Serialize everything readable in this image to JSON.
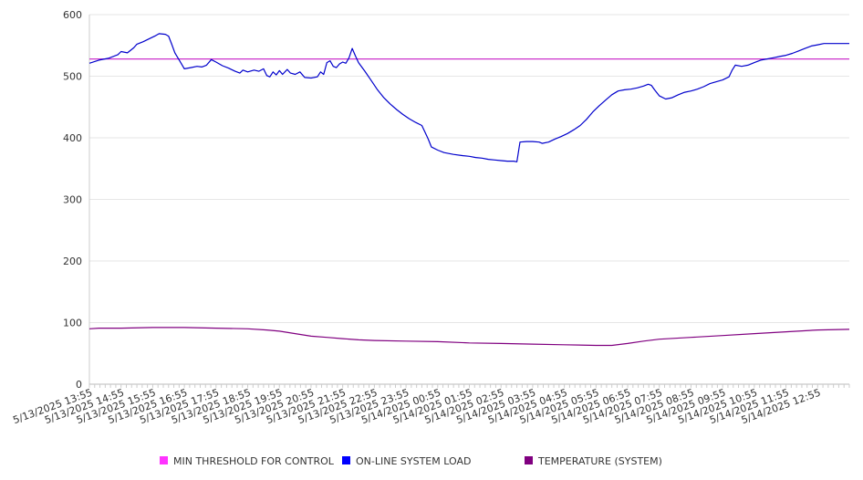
{
  "chart_data": {
    "type": "line",
    "title": "",
    "xlabel": "",
    "ylabel": "",
    "ylim": [
      0,
      600
    ],
    "yticks": [
      0,
      100,
      200,
      300,
      400,
      500,
      600
    ],
    "grid": true,
    "legend_position": "bottom",
    "x_tick_labels": [
      "5/13/2025 13:55",
      "5/13/2025 14:55",
      "5/13/2025 15:55",
      "5/13/2025 16:55",
      "5/13/2025 17:55",
      "5/13/2025 18:55",
      "5/13/2025 19:55",
      "5/13/2025 20:55",
      "5/13/2025 21:55",
      "5/13/2025 22:55",
      "5/13/2025 23:55",
      "5/14/2025 00:55",
      "5/14/2025 01:55",
      "5/14/2025 02:55",
      "5/14/2025 03:55",
      "5/14/2025 04:55",
      "5/14/2025 05:55",
      "5/14/2025 06:55",
      "5/14/2025 07:55",
      "5/14/2025 08:55",
      "5/14/2025 09:55",
      "5/14/2025 10:55",
      "5/14/2025 11:55",
      "5/14/2025 12:55"
    ],
    "x_range_hours": [
      0,
      24
    ],
    "series": [
      {
        "name": "MIN THRESHOLD FOR CONTROL",
        "color": "#cc33cc",
        "legend_color": "#ff33ff",
        "points": [
          [
            0,
            528
          ],
          [
            24,
            528
          ]
        ]
      },
      {
        "name": "ON-LINE SYSTEM LOAD",
        "color": "#0000cc",
        "legend_color": "#0000ff",
        "points": [
          [
            0,
            521
          ],
          [
            0.3,
            526
          ],
          [
            0.6,
            529
          ],
          [
            0.9,
            535
          ],
          [
            1.0,
            540
          ],
          [
            1.2,
            538
          ],
          [
            1.4,
            546
          ],
          [
            1.5,
            552
          ],
          [
            1.7,
            556
          ],
          [
            1.9,
            561
          ],
          [
            2.1,
            566
          ],
          [
            2.2,
            569
          ],
          [
            2.4,
            568
          ],
          [
            2.5,
            565
          ],
          [
            2.6,
            552
          ],
          [
            2.7,
            538
          ],
          [
            2.85,
            525
          ],
          [
            3.0,
            512
          ],
          [
            3.2,
            514
          ],
          [
            3.4,
            516
          ],
          [
            3.55,
            515
          ],
          [
            3.7,
            518
          ],
          [
            3.85,
            527
          ],
          [
            4.0,
            523
          ],
          [
            4.2,
            517
          ],
          [
            4.4,
            513
          ],
          [
            4.6,
            508
          ],
          [
            4.75,
            505
          ],
          [
            4.85,
            510
          ],
          [
            5.0,
            507
          ],
          [
            5.2,
            510
          ],
          [
            5.35,
            508
          ],
          [
            5.5,
            512
          ],
          [
            5.6,
            501
          ],
          [
            5.7,
            499
          ],
          [
            5.8,
            507
          ],
          [
            5.9,
            502
          ],
          [
            6.0,
            509
          ],
          [
            6.1,
            503
          ],
          [
            6.25,
            511
          ],
          [
            6.35,
            505
          ],
          [
            6.5,
            503
          ],
          [
            6.65,
            507
          ],
          [
            6.8,
            498
          ],
          [
            7.0,
            497
          ],
          [
            7.2,
            499
          ],
          [
            7.3,
            507
          ],
          [
            7.4,
            503
          ],
          [
            7.5,
            522
          ],
          [
            7.6,
            525
          ],
          [
            7.7,
            516
          ],
          [
            7.8,
            514
          ],
          [
            7.9,
            520
          ],
          [
            8.0,
            523
          ],
          [
            8.1,
            521
          ],
          [
            8.2,
            530
          ],
          [
            8.3,
            545
          ],
          [
            8.4,
            533
          ],
          [
            8.5,
            522
          ],
          [
            8.7,
            508
          ],
          [
            8.9,
            493
          ],
          [
            9.1,
            478
          ],
          [
            9.3,
            465
          ],
          [
            9.5,
            455
          ],
          [
            9.7,
            446
          ],
          [
            9.9,
            438
          ],
          [
            10.1,
            431
          ],
          [
            10.3,
            425
          ],
          [
            10.5,
            420
          ],
          [
            10.6,
            409
          ],
          [
            10.7,
            398
          ],
          [
            10.8,
            385
          ],
          [
            11.0,
            380
          ],
          [
            11.2,
            376
          ],
          [
            11.5,
            373
          ],
          [
            11.8,
            371
          ],
          [
            12.0,
            370
          ],
          [
            12.2,
            368
          ],
          [
            12.4,
            367
          ],
          [
            12.6,
            365
          ],
          [
            12.8,
            364
          ],
          [
            13.0,
            363
          ],
          [
            13.2,
            362
          ],
          [
            13.4,
            362
          ],
          [
            13.5,
            361
          ],
          [
            13.6,
            393
          ],
          [
            13.8,
            394
          ],
          [
            14.0,
            394
          ],
          [
            14.2,
            393
          ],
          [
            14.3,
            391
          ],
          [
            14.5,
            393
          ],
          [
            14.7,
            398
          ],
          [
            14.9,
            402
          ],
          [
            15.1,
            407
          ],
          [
            15.3,
            413
          ],
          [
            15.5,
            420
          ],
          [
            15.7,
            430
          ],
          [
            15.9,
            442
          ],
          [
            16.1,
            452
          ],
          [
            16.3,
            461
          ],
          [
            16.5,
            470
          ],
          [
            16.7,
            476
          ],
          [
            16.9,
            478
          ],
          [
            17.1,
            479
          ],
          [
            17.3,
            481
          ],
          [
            17.5,
            484
          ],
          [
            17.65,
            487
          ],
          [
            17.75,
            485
          ],
          [
            17.85,
            478
          ],
          [
            18.0,
            468
          ],
          [
            18.2,
            463
          ],
          [
            18.4,
            465
          ],
          [
            18.6,
            470
          ],
          [
            18.8,
            474
          ],
          [
            19.0,
            476
          ],
          [
            19.2,
            479
          ],
          [
            19.4,
            483
          ],
          [
            19.6,
            488
          ],
          [
            19.8,
            491
          ],
          [
            20.0,
            494
          ],
          [
            20.2,
            499
          ],
          [
            20.3,
            510
          ],
          [
            20.4,
            518
          ],
          [
            20.6,
            516
          ],
          [
            20.8,
            518
          ],
          [
            21.0,
            522
          ],
          [
            21.2,
            526
          ],
          [
            21.4,
            528
          ],
          [
            21.6,
            530
          ],
          [
            21.8,
            532
          ],
          [
            22.0,
            534
          ],
          [
            22.2,
            537
          ],
          [
            22.4,
            541
          ],
          [
            22.6,
            545
          ],
          [
            22.8,
            549
          ],
          [
            23.0,
            551
          ],
          [
            23.2,
            553
          ],
          [
            23.5,
            553
          ],
          [
            24.0,
            553
          ]
        ]
      },
      {
        "name": "TEMPERATURE (SYSTEM)",
        "color": "#800080",
        "legend_color": "#800080",
        "points": [
          [
            0,
            90
          ],
          [
            0.3,
            91
          ],
          [
            1.0,
            91
          ],
          [
            2.0,
            92
          ],
          [
            3.0,
            92
          ],
          [
            4.0,
            91
          ],
          [
            5.0,
            90
          ],
          [
            5.6,
            88
          ],
          [
            6.0,
            86
          ],
          [
            6.5,
            82
          ],
          [
            7.0,
            78
          ],
          [
            7.5,
            76
          ],
          [
            8.0,
            74
          ],
          [
            8.5,
            72
          ],
          [
            9.0,
            71
          ],
          [
            10.0,
            70
          ],
          [
            11.0,
            69
          ],
          [
            12.0,
            67
          ],
          [
            13.0,
            66
          ],
          [
            14.0,
            65
          ],
          [
            15.0,
            64
          ],
          [
            16.0,
            63
          ],
          [
            16.5,
            63
          ],
          [
            17.0,
            66
          ],
          [
            17.5,
            70
          ],
          [
            18.0,
            73
          ],
          [
            19.0,
            76
          ],
          [
            20.0,
            79
          ],
          [
            21.0,
            82
          ],
          [
            22.0,
            85
          ],
          [
            23.0,
            88
          ],
          [
            24.0,
            89
          ]
        ]
      }
    ]
  }
}
